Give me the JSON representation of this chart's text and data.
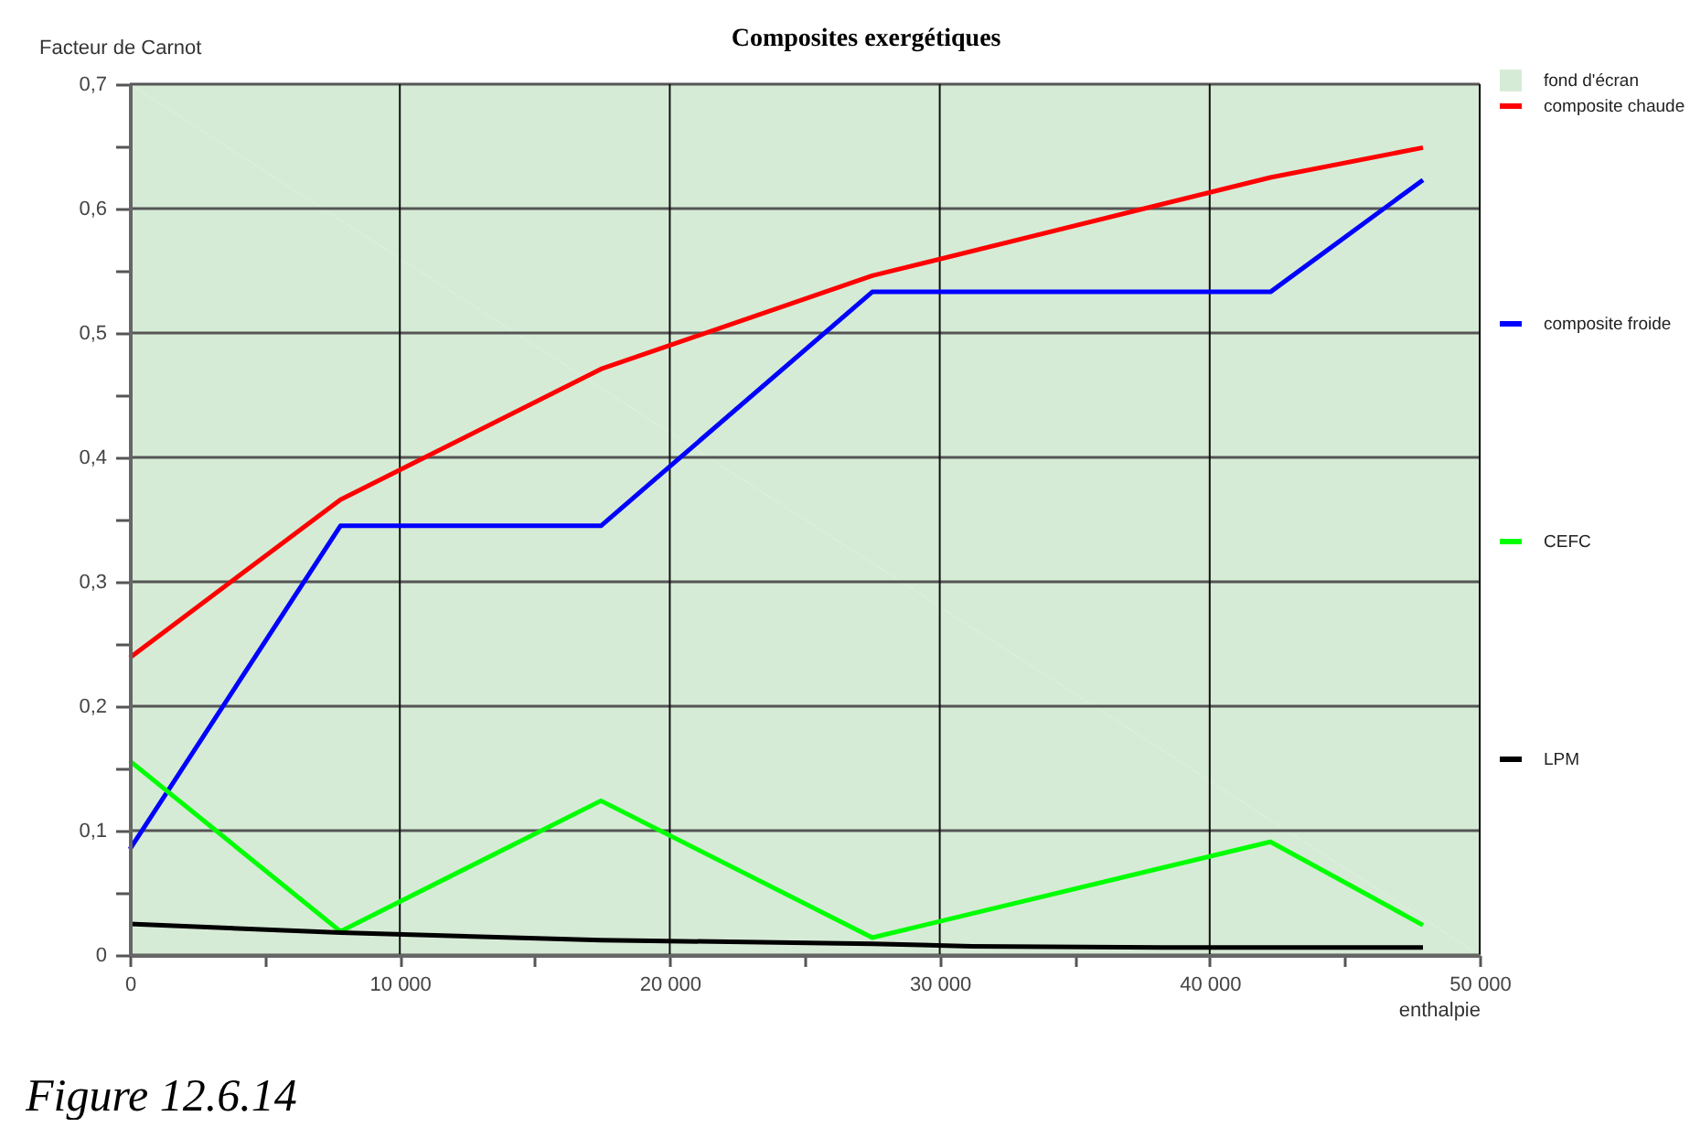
{
  "chart_data": {
    "type": "line",
    "title": "Composites exergétiques",
    "xlabel": "enthalpie",
    "ylabel": "Facteur de Carnot",
    "annotations": [
      "Figure 12.6.14"
    ],
    "xlim": [
      0,
      50000
    ],
    "ylim": [
      0,
      0.7
    ],
    "xticks": [
      0,
      {
        "value": 5000,
        "label": null
      },
      {
        "value": 10000,
        "label": "10 000"
      },
      {
        "value": 15000,
        "label": null
      },
      {
        "value": 20000,
        "label": "20 000"
      },
      {
        "value": 25000,
        "label": null
      },
      {
        "value": 30000,
        "label": "30 000"
      },
      {
        "value": 35000,
        "label": null
      },
      {
        "value": 40000,
        "label": "40 000"
      },
      {
        "value": 45000,
        "label": null
      },
      {
        "value": 50000,
        "label": "50 000"
      }
    ],
    "yticks": [
      0,
      {
        "value": 0.05,
        "label": null
      },
      {
        "value": 0.1,
        "label": "0,1"
      },
      {
        "value": 0.15,
        "label": null
      },
      {
        "value": 0.2,
        "label": "0,2"
      },
      {
        "value": 0.25,
        "label": null
      },
      {
        "value": 0.3,
        "label": "0,3"
      },
      {
        "value": 0.35,
        "label": null
      },
      {
        "value": 0.4,
        "label": "0,4"
      },
      {
        "value": 0.45,
        "label": null
      },
      {
        "value": 0.5,
        "label": "0,5"
      },
      {
        "value": 0.55,
        "label": null
      },
      {
        "value": 0.6,
        "label": "0,6"
      },
      {
        "value": 0.65,
        "label": null
      },
      {
        "value": 0.7,
        "label": "0,7"
      }
    ],
    "grid": true,
    "legend": "right",
    "x": [
      0,
      7800,
      17450,
      27500,
      42250,
      47900
    ],
    "series": [
      {
        "name": "fond d'écran",
        "type": "area",
        "color": "#d6ebd6",
        "x": [
          0,
          50000
        ],
        "values": [
          0.7,
          0.7
        ]
      },
      {
        "name": "composite chaude",
        "color": "#ff0000",
        "values": [
          0.239,
          0.366,
          0.471,
          0.546,
          0.625,
          0.649
        ]
      },
      {
        "name": "composite froide",
        "color": "#0000ff",
        "values": [
          0.085,
          0.345,
          0.345,
          0.533,
          0.533,
          0.623
        ]
      },
      {
        "name": "CEFC",
        "color": "#00ff00",
        "values": [
          0.156,
          0.019,
          0.124,
          0.014,
          0.091,
          0.024
        ]
      },
      {
        "name": "LPM",
        "color": "#000000",
        "x": [
          0,
          7800,
          17450,
          27500,
          31200,
          38500,
          47900
        ],
        "values": [
          0.025,
          0.018,
          0.012,
          0.009,
          0.007,
          0.006,
          0.006
        ]
      }
    ]
  }
}
